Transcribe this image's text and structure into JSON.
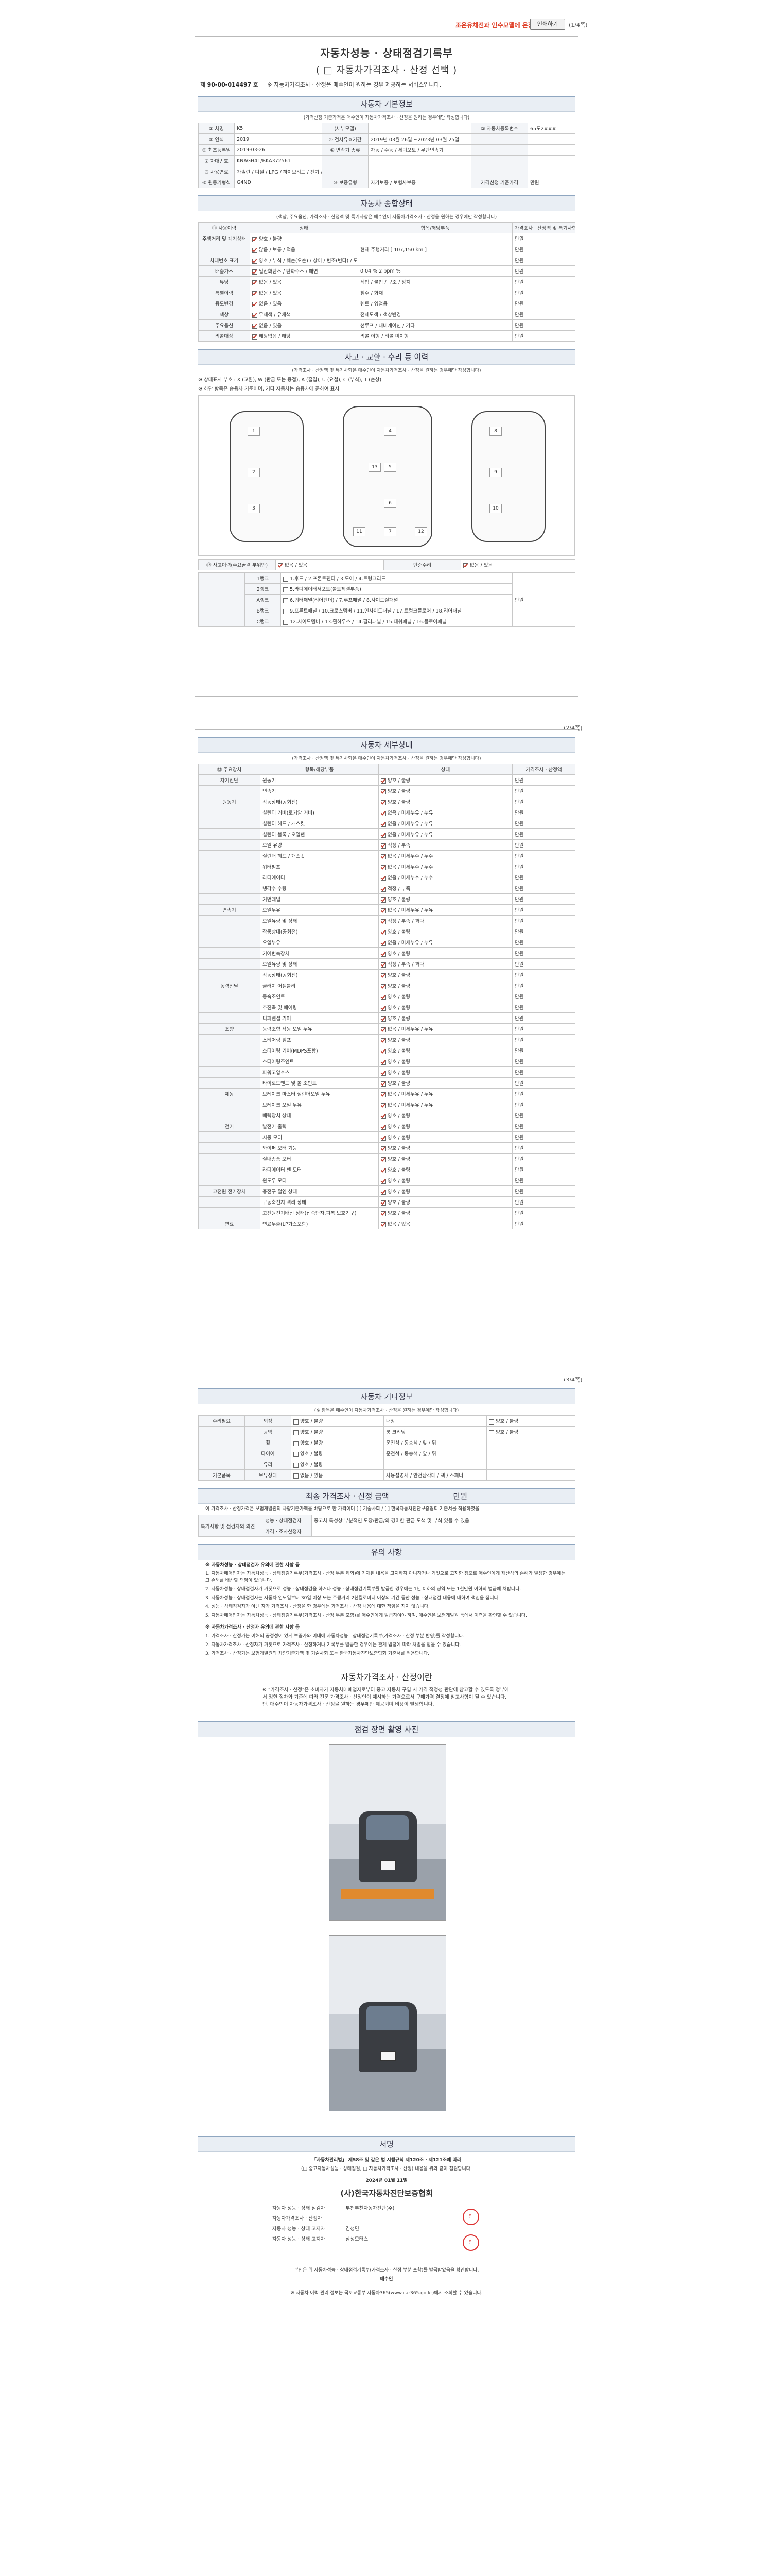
{
  "toolbar": {
    "link_text": "조은유채전과 인수모델에 온장",
    "print_label": "인쇄하기",
    "page1": "(1/4쪽)",
    "page2": "(2/4쪽)",
    "page3": "(3/4쪽)"
  },
  "header": {
    "title": "자동차성능 · 상태점검기록부",
    "subtitle": "( □ 자동차가격조사 · 산정 선택 )",
    "reg_no_label": "제",
    "reg_no": "90-00-014497",
    "reg_suffix": "호",
    "reg_note": "※ 자동차가격조사 · 산정은 매수인이 원하는 경우 제공하는 서비스입니다."
  },
  "basic": {
    "head": "자동차 기본정보",
    "note": "(가격산정 기준가격은 매수인이 자동차가격조사 · 산정을 원하는 경우에만 작성합니다)",
    "rows": [
      [
        "① 차명",
        "K5",
        "(세부모델)",
        "",
        "② 자동차등록번호",
        "65도2###"
      ],
      [
        "③ 연식",
        "2019",
        "④ 검사유효기간",
        "2019년 03월 26일 ~2023년 03월 25일",
        "",
        ""
      ],
      [
        "⑤ 최초등록일",
        "2019-03-26",
        "⑥ 변속기 종류",
        "자동 / 수동 / 세미오토 / 무단변속기",
        "",
        ""
      ],
      [
        "⑦ 차대번호",
        "KNAGH41/BKA372561",
        "",
        "",
        "",
        ""
      ],
      [
        "⑧ 사용연료",
        "가솔린 / 디젤 / LPG / 하이브리드 / 전기 / 수소전기 / 기타",
        "",
        "",
        "",
        ""
      ],
      [
        "⑨ 원동기형식",
        "G4ND",
        "⑩ 보증유형",
        "자가보증 / 보험사보증",
        "가격산정 기준가격",
        "만원"
      ]
    ]
  },
  "overview": {
    "head": "자동차 종합상태",
    "note": "(색상, 주요옵션, 가격조사 · 산정액 및 특기사항은 매수인이 자동차가격조사 · 산정을 원하는 경우에만 작성합니다)",
    "cols": [
      "⑪ 사용이력",
      "상태",
      "항목/해당부품",
      "가격조사 · 산정액 및 특기사항"
    ],
    "rows": [
      [
        "주행거리 및 계기상태",
        "양호 / 불량",
        "",
        "만원"
      ],
      [
        "",
        "많음 / 보통 / 적음",
        "현재 주행거리 [ 107,150 km ]",
        "만원"
      ],
      [
        "차대번호 표기",
        "양호 / 부식 / 훼손(오손) / 상이 / 변조(변타) / 도말",
        "",
        "만원"
      ],
      [
        "배출가스",
        "일산화탄소 / 탄화수소 / 매연",
        "0.04 %  2 ppm  %",
        "만원"
      ],
      [
        "튜닝",
        "없음 / 있음",
        "적법 / 불법 / 구조 / 장치",
        "만원"
      ],
      [
        "특별이력",
        "없음 / 있음",
        "침수 / 화재",
        "만원"
      ],
      [
        "용도변경",
        "없음 / 있음",
        "렌트 / 영업용",
        "만원"
      ],
      [
        "색상",
        "무채색 / 유채색",
        "전체도색 / 색상변경",
        "만원"
      ],
      [
        "주요옵션",
        "없음 / 있음",
        "선루프 / 내비게이션 / 기타",
        "만원"
      ],
      [
        "리콜대상",
        "해당없음 / 해당",
        "리콜 이행 / 리콜 미이행",
        "만원"
      ]
    ]
  },
  "accident": {
    "head": "사고 · 교환 · 수리 등 이력",
    "note": "(가격조사 · 산정액 및 특기사항은 매수인이 자동차가격조사 · 산정을 원하는 경우에만 작성합니다)",
    "legend": "※ 상태표시 부호 : X (교환), W (판금 또는 용접), A (흠집), U (요철), C (부식), T (손상)",
    "legend2": "※ 하단 항목은 승용차 기준이며, 기타 자동차는 승용차에 준하여 표시",
    "row1": [
      "⑫ 사고이력(주요골격 부위만)",
      "없음 / 있음",
      "단순수리",
      "없음 / 있음"
    ],
    "panels": [
      "1",
      "2",
      "3",
      "4",
      "5",
      "6",
      "7",
      "8",
      "9",
      "10",
      "11",
      "12",
      "13"
    ],
    "rank1": [
      "1랭크",
      "1.후드 / 2.프론트펜더 / 3.도어 / 4.트렁크리드"
    ],
    "rank2": [
      "2랭크",
      "5.라디에이터서포트(볼트체결부품)"
    ],
    "rank3": [
      "A랭크",
      "6.쿼터패널(리어펜더) / 7.루프패널 / 8.사이드실패널"
    ],
    "rank4": [
      "B랭크",
      "9.프론트패널 / 10.크로스멤버 / 11.인사이드패널 / 17.트렁크플로어 / 18.리어패널"
    ],
    "rank5": [
      "C랭크",
      "12.사이드멤버 / 13.휠하우스 / 14.필러패널 / 15.대쉬패널 / 16.플로어패널"
    ],
    "price": "만원"
  },
  "detail": {
    "head": "자동차 세부상태",
    "note": "(가격조사 · 산정액 및 특기사항은 매수인이 자동차가격조사 · 산정을 원하는 경우에만 작성합니다)",
    "cols": [
      "⑬ 주요장치",
      "항목/해당부품",
      "상태",
      "가격조사 · 산정액"
    ],
    "rows": [
      [
        "자기진단",
        "원동기",
        "양호 / 불량",
        "만원"
      ],
      [
        "",
        "변속기",
        "양호 / 불량",
        "만원"
      ],
      [
        "원동기",
        "작동상태(공회전)",
        "양호 / 불량",
        "만원"
      ],
      [
        "",
        "실린더 커버(로커암 커버)",
        "없음 / 미세누유 / 누유",
        "만원"
      ],
      [
        "",
        "실린더 헤드 / 개스킷",
        "없음 / 미세누유 / 누유",
        "만원"
      ],
      [
        "",
        "실린더 블록 / 오일팬",
        "없음 / 미세누유 / 누유",
        "만원"
      ],
      [
        "",
        "오일 유량",
        "적정 / 부족",
        "만원"
      ],
      [
        "",
        "실린더 헤드 / 개스킷",
        "없음 / 미세누수 / 누수",
        "만원"
      ],
      [
        "",
        "워터펌프",
        "없음 / 미세누수 / 누수",
        "만원"
      ],
      [
        "",
        "라디에이터",
        "없음 / 미세누수 / 누수",
        "만원"
      ],
      [
        "",
        "냉각수 수량",
        "적정 / 부족",
        "만원"
      ],
      [
        "",
        "커먼레일",
        "양호 / 불량",
        "만원"
      ],
      [
        "변속기",
        "오일누유",
        "없음 / 미세누유 / 누유",
        "만원"
      ],
      [
        "",
        "오일유량 및 상태",
        "적정 / 부족 / 과다",
        "만원"
      ],
      [
        "",
        "작동상태(공회전)",
        "양호 / 불량",
        "만원"
      ],
      [
        "",
        "오일누유",
        "없음 / 미세누유 / 누유",
        "만원"
      ],
      [
        "",
        "기어변속장치",
        "양호 / 불량",
        "만원"
      ],
      [
        "",
        "오일유량 및 상태",
        "적정 / 부족 / 과다",
        "만원"
      ],
      [
        "",
        "작동상태(공회전)",
        "양호 / 불량",
        "만원"
      ],
      [
        "동력전달",
        "클러치 어셈블리",
        "양호 / 불량",
        "만원"
      ],
      [
        "",
        "등속조인트",
        "양호 / 불량",
        "만원"
      ],
      [
        "",
        "추진축 및 베어링",
        "양호 / 불량",
        "만원"
      ],
      [
        "",
        "디퍼렌셜 기어",
        "양호 / 불량",
        "만원"
      ],
      [
        "조향",
        "동력조향 작동 오일 누유",
        "없음 / 미세누유 / 누유",
        "만원"
      ],
      [
        "",
        "스티어링 펌프",
        "양호 / 불량",
        "만원"
      ],
      [
        "",
        "스티어링 기어(MDPS포함)",
        "양호 / 불량",
        "만원"
      ],
      [
        "",
        "스티어링조인트",
        "양호 / 불량",
        "만원"
      ],
      [
        "",
        "파워고압호스",
        "양호 / 불량",
        "만원"
      ],
      [
        "",
        "타이로드엔드 및 볼 조인트",
        "양호 / 불량",
        "만원"
      ],
      [
        "제동",
        "브레이크 마스터 실린더오일 누유",
        "없음 / 미세누유 / 누유",
        "만원"
      ],
      [
        "",
        "브레이크 오일 누유",
        "없음 / 미세누유 / 누유",
        "만원"
      ],
      [
        "",
        "배력장치 상태",
        "양호 / 불량",
        "만원"
      ],
      [
        "전기",
        "발전기 출력",
        "양호 / 불량",
        "만원"
      ],
      [
        "",
        "시동 모터",
        "양호 / 불량",
        "만원"
      ],
      [
        "",
        "와이퍼 모터 기능",
        "양호 / 불량",
        "만원"
      ],
      [
        "",
        "실내송풍 모터",
        "양호 / 불량",
        "만원"
      ],
      [
        "",
        "라디에이터 팬 모터",
        "양호 / 불량",
        "만원"
      ],
      [
        "",
        "윈도우 모터",
        "양호 / 불량",
        "만원"
      ],
      [
        "고전원 전기장치",
        "충전구 절연 상태",
        "양호 / 불량",
        "만원"
      ],
      [
        "",
        "구동축전지 격리 상태",
        "양호 / 불량",
        "만원"
      ],
      [
        "",
        "고전원전기배선 상태(접속단자,피복,보호기구)",
        "양호 / 불량",
        "만원"
      ],
      [
        "연료",
        "연료누출(LP가스포함)",
        "없음 / 있음",
        "만원"
      ]
    ]
  },
  "other": {
    "head": "자동차 기타정보",
    "note": "(※ 항목은 매수인이 자동차가격조사 · 산정을 원하는 경우에만 작성합니다)",
    "rows": [
      [
        "수리필요",
        "외장",
        "양호 / 불량",
        "내장",
        "양호 / 불량"
      ],
      [
        "",
        "광택",
        "양호 / 불량",
        "룸 크리닝",
        "양호 / 불량"
      ],
      [
        "",
        "휠",
        "양호 / 불량",
        "운전석 / 동승석 / 앞 / 뒤",
        ""
      ],
      [
        "",
        "타이어",
        "양호 / 불량",
        "운전석 / 동승석 / 앞 / 뒤",
        ""
      ],
      [
        "",
        "유리",
        "양호 / 불량",
        "",
        ""
      ],
      [
        "기본품목",
        "보유상태",
        "없음 / 있음",
        "사용설명서 / 안전삼각대 / 잭 / 스패너",
        ""
      ]
    ],
    "price": "만원"
  },
  "final": {
    "head": "최종 가격조사 · 산정 금액",
    "amount_label": "만원",
    "note": "이 가격조사 · 산정가격은 보험개발원의 차량기준가액을 바탕으로 한 가격이며 [ ] 기술사회 / [ ] 한국자동차진단보증협회 기준서를 적용하였음",
    "r1": [
      "특기사항 및 점검자의 의견",
      "성능 · 상태점검자",
      "중고차 특성상 부분적인 도장/판금/외 경미한 판금 도색 및 부식 있을 수 있음."
    ],
    "r2": [
      "",
      "가격 · 조사산정자",
      ""
    ]
  },
  "notes": {
    "head": "유의 사항",
    "section1": "※ 자동차성능 · 상태점검자 유의에 관한 사항 등",
    "lines": [
      "1. 자동차매매업자는 자동차성능 · 상태점검기록부(가격조사 · 산정 부분 제외)에 기재된 내용을 고지하지 아니하거나 거짓으로 고지한 점으로 매수인에게 재산상의 손해가 발생한 경우에는 그 손해를 배상할 책임이 있습니다.",
      "2. 자동차성능 · 상태점검자가 거짓으로 성능 · 상태점검을 하거나 성능 · 상태점검기록부를 발급한 경우에는 1년 이하의 징역 또는 1천만원 이하의 벌금에 처합니다.",
      "3. 자동차성능 · 상태점검자는 자동차 인도일부터 30일 이상 또는 주행거리 2천킬로미터 이상의 기간 동안 성능 · 상태점검 내용에 대하여 책임을 집니다.",
      "4. 성능 · 상태점검자가 아닌 자가 가격조사 · 산정을 한 경우에는 가격조사 · 산정 내용에 대한 책임을 지지 않습니다.",
      "5. 자동차매매업자는 자동차성능 · 상태점검기록부(가격조사 · 산정 부분 포함)를 매수인에게 발급하여야 하며, 매수인은 보험개발원 등에서 이력을 확인할 수 있습니다."
    ],
    "section2": "※ 자동차가격조사 · 산정자 유의에 관한 사항 등",
    "lines2": [
      "1. 가격조사 · 산정가는 이해의 공정성이 있게 보증가와 이내에 자동차성능 · 상태점검기록부(가격조사 · 산정 부분 반영)를 작성합니다.",
      "2. 자동차가격조사 · 산정자가 거짓으로 가격조사 · 산정하거나 기록부를 발급한 경우에는 관계 법령에 따라 처벌을 받을 수 있습니다.",
      "3. 가격조사 · 산정가는 보험개발원의 차량기준가액 및 기술사회 또는 한국자동차진단보증협회 기준서를 적용합니다."
    ]
  },
  "selection": {
    "head": "자동차가격조사 · 산정이란",
    "text": "※ \"가격조사 · 산정\"은 소비자가 자동차매매업자로부터 중고 자동차 구입 시 가격 적정성 판단에 참고할 수 있도록 정부에서 정한 절차와 기준에 따라 전문 가격조사 · 산정인이 제시하는 가격으로서 구매가격 결정에 참고사항이 될 수 있습니다. 단, 매수인이 자동차가격조사 · 산정을 원하는 경우에만 제공되며 비용이 발생합니다."
  },
  "photos": {
    "head": "점검 장면 촬영 사진"
  },
  "signature": {
    "head": "서명",
    "law": "「자동차관리법」 제58조 및 같은 법 시행규칙 제120조 · 제121조에 따라",
    "law2": "(□ 중고자동차성능 · 상태점검, □ 자동차가격조사 · 산정) 내용을 위와 같이 점검합니다.",
    "date": "2024년 01월 11일",
    "org": "(사)한국자동차진단보증협회",
    "r1": [
      "자동차 성능 · 상태 점검자",
      "부천부천자동차진단(주)"
    ],
    "r2": [
      "자동차가격조사 · 산정자",
      ""
    ],
    "r3": [
      "자동차 성능 · 상태 고지자",
      "김성민"
    ],
    "r4": [
      "자동차 성능 · 상태 고지자",
      "삼성모터스"
    ],
    "stamp": "인",
    "confirm": "본인은 위 자동차성능 · 상태점검기록부(가격조사 · 산정 부분 포함)를 발급받았음을 확인합니다.",
    "buyer": "매수인",
    "footer": "※ 자동차 이력 관리 정보는 국토교통부 자동차365(www.car365.go.kr)에서 조회할 수 있습니다."
  },
  "colors": {
    "accent": "#8fa6c0",
    "check": "#c0392b",
    "link": "#e0452f"
  }
}
